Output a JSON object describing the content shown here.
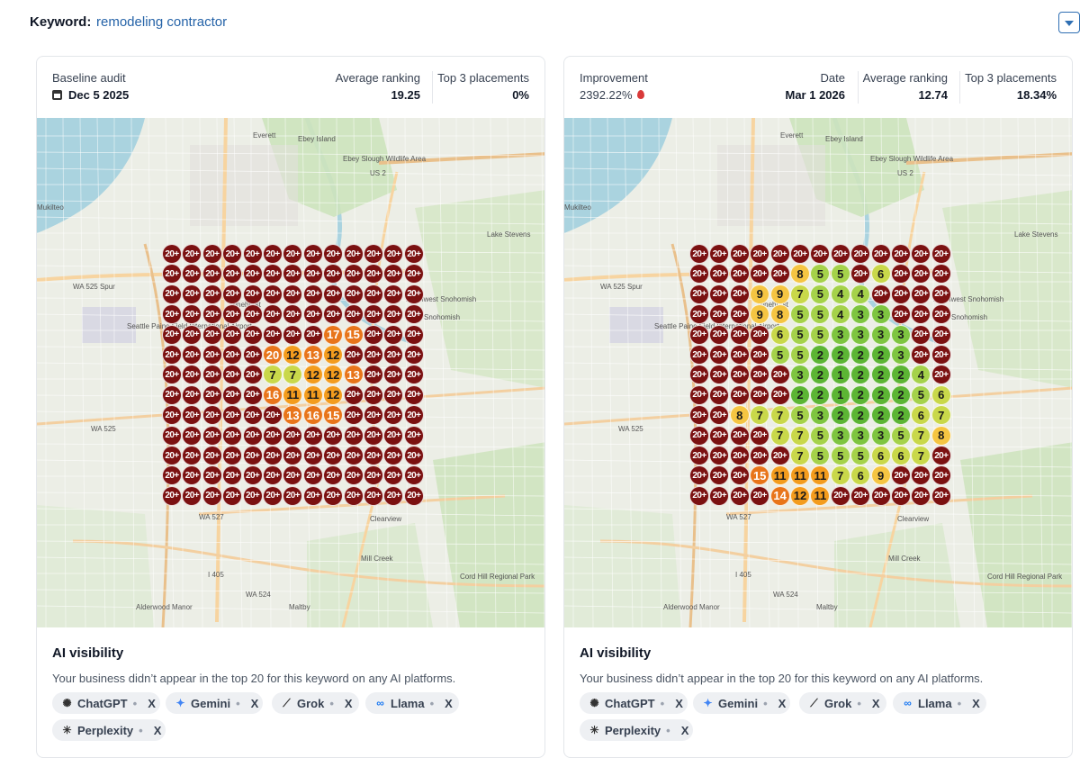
{
  "keyword": {
    "label": "Keyword:",
    "value": "remodeling contractor"
  },
  "baseline": {
    "title": "Baseline audit",
    "date": "Dec 5 2025",
    "avg_label": "Average ranking",
    "avg_value": "19.25",
    "top3_label": "Top 3 placements",
    "top3_value": "0%",
    "grid": [
      [
        "20+",
        "20+",
        "20+",
        "20+",
        "20+",
        "20+",
        "20+",
        "20+",
        "20+",
        "20+",
        "20+",
        "20+",
        "20+"
      ],
      [
        "20+",
        "20+",
        "20+",
        "20+",
        "20+",
        "20+",
        "20+",
        "20+",
        "20+",
        "20+",
        "20+",
        "20+",
        "20+"
      ],
      [
        "20+",
        "20+",
        "20+",
        "20+",
        "20+",
        "20+",
        "20+",
        "20+",
        "20+",
        "20+",
        "20+",
        "20+",
        "20+"
      ],
      [
        "20+",
        "20+",
        "20+",
        "20+",
        "20+",
        "20+",
        "20+",
        "20+",
        "20+",
        "20+",
        "20+",
        "20+",
        "20+"
      ],
      [
        "20+",
        "20+",
        "20+",
        "20+",
        "20+",
        "20+",
        "20+",
        "20+",
        "17",
        "15",
        "20+",
        "20+",
        "20+"
      ],
      [
        "20+",
        "20+",
        "20+",
        "20+",
        "20+",
        "20",
        "12",
        "13",
        "12",
        "20+",
        "20+",
        "20+",
        "20+"
      ],
      [
        "20+",
        "20+",
        "20+",
        "20+",
        "20+",
        "7",
        "7",
        "12",
        "12",
        "13",
        "20+",
        "20+",
        "20+"
      ],
      [
        "20+",
        "20+",
        "20+",
        "20+",
        "20+",
        "16",
        "11",
        "11",
        "12",
        "20+",
        "20+",
        "20+",
        "20+"
      ],
      [
        "20+",
        "20+",
        "20+",
        "20+",
        "20+",
        "20+",
        "13",
        "16",
        "15",
        "20+",
        "20+",
        "20+",
        "20+"
      ],
      [
        "20+",
        "20+",
        "20+",
        "20+",
        "20+",
        "20+",
        "20+",
        "20+",
        "20+",
        "20+",
        "20+",
        "20+",
        "20+"
      ],
      [
        "20+",
        "20+",
        "20+",
        "20+",
        "20+",
        "20+",
        "20+",
        "20+",
        "20+",
        "20+",
        "20+",
        "20+",
        "20+"
      ],
      [
        "20+",
        "20+",
        "20+",
        "20+",
        "20+",
        "20+",
        "20+",
        "20+",
        "20+",
        "20+",
        "20+",
        "20+",
        "20+"
      ],
      [
        "20+",
        "20+",
        "20+",
        "20+",
        "20+",
        "20+",
        "20+",
        "20+",
        "20+",
        "20+",
        "20+",
        "20+",
        "20+"
      ]
    ]
  },
  "improved": {
    "title": "Improvement",
    "improvement_value": "2392.22%",
    "date_label": "Date",
    "date": "Mar 1 2026",
    "avg_label": "Average ranking",
    "avg_value": "12.74",
    "top3_label": "Top 3 placements",
    "top3_value": "18.34%",
    "grid": [
      [
        "20+",
        "20+",
        "20+",
        "20+",
        "20+",
        "20+",
        "20+",
        "20+",
        "20+",
        "20+",
        "20+",
        "20+",
        "20+"
      ],
      [
        "20+",
        "20+",
        "20+",
        "20+",
        "20+",
        "8",
        "5",
        "5",
        "20+",
        "6",
        "20+",
        "20+",
        "20+"
      ],
      [
        "20+",
        "20+",
        "20+",
        "9",
        "9",
        "7",
        "5",
        "4",
        "4",
        "20+",
        "20+",
        "20+",
        "20+"
      ],
      [
        "20+",
        "20+",
        "20+",
        "9",
        "8",
        "5",
        "5",
        "4",
        "3",
        "3",
        "20+",
        "20+",
        "20+"
      ],
      [
        "20+",
        "20+",
        "20+",
        "20+",
        "6",
        "5",
        "5",
        "3",
        "3",
        "3",
        "3",
        "20+",
        "20+"
      ],
      [
        "20+",
        "20+",
        "20+",
        "20+",
        "5",
        "5",
        "2",
        "2",
        "2",
        "2",
        "3",
        "20+",
        "20+"
      ],
      [
        "20+",
        "20+",
        "20+",
        "20+",
        "20+",
        "3",
        "2",
        "1",
        "2",
        "2",
        "2",
        "4",
        "20+"
      ],
      [
        "20+",
        "20+",
        "20+",
        "20+",
        "20+",
        "2",
        "2",
        "1",
        "2",
        "2",
        "2",
        "5",
        "6"
      ],
      [
        "20+",
        "20+",
        "8",
        "7",
        "7",
        "5",
        "3",
        "2",
        "2",
        "2",
        "2",
        "6",
        "7"
      ],
      [
        "20+",
        "20+",
        "20+",
        "20+",
        "7",
        "7",
        "5",
        "3",
        "3",
        "3",
        "5",
        "7",
        "8"
      ],
      [
        "20+",
        "20+",
        "20+",
        "20+",
        "20+",
        "7",
        "5",
        "5",
        "5",
        "6",
        "6",
        "7",
        "20+"
      ],
      [
        "20+",
        "20+",
        "20+",
        "15",
        "11",
        "11",
        "11",
        "7",
        "6",
        "9",
        "20+",
        "20+",
        "20+"
      ],
      [
        "20+",
        "20+",
        "20+",
        "20+",
        "14",
        "12",
        "11",
        "20+",
        "20+",
        "20+",
        "20+",
        "20+",
        "20+"
      ]
    ]
  },
  "map_labels": [
    "Everett",
    "Ebey Island",
    "Ebey Slough Wildlife Area",
    "Pinehurst",
    "Northwest Snohomish",
    "WA 525 Spur",
    "Snohomish",
    "Seattle Paine Field International Airport",
    "WA 525",
    "WA 527",
    "Clearview",
    "Cord Hill Regional Park",
    "I 405",
    "WA 524",
    "Alderwood Manor",
    "Maltby",
    "Mukilteo",
    "US 2",
    "Lake Stevens",
    "Mill Creek"
  ],
  "ai": {
    "title": "AI visibility",
    "desc": "Your business didn’t appear in the top 20 for this keyword on any AI platforms.",
    "platforms": [
      {
        "name": "ChatGPT",
        "icon": "chatgpt-icon",
        "glyph": "✺",
        "status": "X"
      },
      {
        "name": "Gemini",
        "icon": "gemini-icon",
        "glyph": "✦",
        "status": "X"
      },
      {
        "name": "Grok",
        "icon": "grok-icon",
        "glyph": "⟋",
        "status": "X"
      },
      {
        "name": "Llama",
        "icon": "meta-icon",
        "glyph": "∞",
        "status": "X"
      },
      {
        "name": "Perplexity",
        "icon": "perplexity-icon",
        "glyph": "✳",
        "status": "X"
      }
    ]
  },
  "colors": {
    "red": "#7b1111",
    "orange_dark": "#e8751a",
    "orange": "#f39c1e",
    "yellow": "#f5c542",
    "green_light": "#a5d24a",
    "green": "#7ec540",
    "green_dark": "#5cb534",
    "link": "#2563a8"
  }
}
